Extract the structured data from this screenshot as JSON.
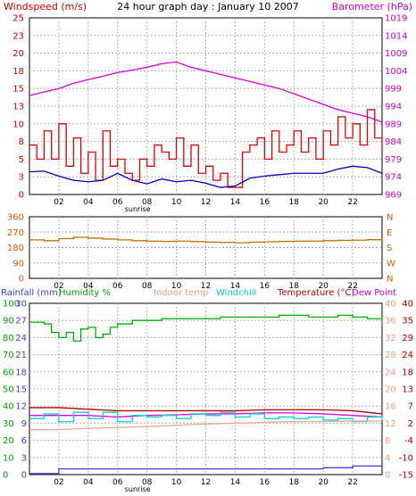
{
  "chart_data": [
    {
      "type": "line",
      "title": "24 hour graph day : January 10 2007",
      "left_axis_label": "Windspeed (m/s)",
      "right_axis_label": "Barometer (hPa)",
      "x_ticks": [
        "02",
        "04",
        "06",
        "08",
        "10",
        "12",
        "14",
        "16",
        "18",
        "20",
        "22"
      ],
      "x_note": "sunrise",
      "y_left_ticks": [
        "0",
        "3",
        "5",
        "8",
        "10",
        "13",
        "15",
        "18",
        "20",
        "23",
        "25"
      ],
      "y_right_ticks": [
        "969",
        "974",
        "979",
        "984",
        "989",
        "994",
        "999",
        "1004",
        "1009",
        "1014",
        "1019"
      ],
      "ylim_left": [
        0,
        25
      ],
      "ylim_right": [
        969,
        1019
      ],
      "grid": true,
      "series": [
        {
          "name": "Barometer (hPa)",
          "axis": "right",
          "color": "#e000e0",
          "x": [
            0,
            1,
            2,
            3,
            4,
            5,
            6,
            7,
            8,
            9,
            10,
            11,
            12,
            13,
            14,
            15,
            16,
            17,
            18,
            19,
            20,
            21,
            22,
            23,
            24
          ],
          "values": [
            997,
            998,
            999,
            1000.5,
            1001.5,
            1002.5,
            1003.5,
            1004.2,
            1005,
            1006,
            1006.5,
            1005,
            1004,
            1003,
            1002,
            1001,
            1000,
            999,
            997.5,
            996,
            994.5,
            993,
            992,
            991,
            989.5
          ]
        },
        {
          "name": "Windspeed (m/s)",
          "axis": "left",
          "color": "#e00000",
          "x": [
            0,
            0.5,
            1,
            1.5,
            2,
            2.5,
            3,
            3.5,
            4,
            4.5,
            5,
            5.5,
            6,
            6.5,
            7,
            7.5,
            8,
            8.5,
            9,
            9.5,
            10,
            10.5,
            11,
            11.5,
            12,
            12.5,
            13,
            13.5,
            14,
            14.5,
            15,
            15.5,
            16,
            16.5,
            17,
            17.5,
            18,
            18.5,
            19,
            19.5,
            20,
            20.5,
            21,
            21.5,
            22,
            22.5,
            23,
            23.5,
            24
          ],
          "values": [
            7,
            5,
            9,
            5,
            10,
            4,
            8,
            3,
            6,
            2,
            9,
            4,
            5,
            3,
            2,
            5,
            4,
            7,
            6,
            5,
            8,
            4,
            7,
            3,
            4,
            2,
            3,
            1,
            1,
            6,
            7,
            8,
            5,
            9,
            6,
            7,
            9,
            6,
            8,
            5,
            9,
            7,
            11,
            8,
            10,
            7,
            12,
            8,
            6
          ]
        },
        {
          "name": "Average windspeed (m/s)",
          "axis": "left",
          "color": "#0000c0",
          "x": [
            0,
            1,
            2,
            3,
            4,
            5,
            6,
            7,
            8,
            9,
            10,
            11,
            12,
            13,
            14,
            15,
            16,
            17,
            18,
            19,
            20,
            21,
            22,
            23,
            24
          ],
          "values": [
            3.2,
            3.3,
            2.6,
            2.0,
            1.8,
            2.0,
            3.0,
            2.0,
            1.5,
            2.2,
            1.8,
            2.0,
            1.6,
            1.0,
            1.2,
            2.3,
            2.6,
            2.8,
            3.0,
            3.0,
            3.0,
            3.6,
            4.0,
            3.8,
            3.0
          ]
        }
      ]
    },
    {
      "type": "line",
      "y_left_ticks": [
        "0",
        "90",
        "180",
        "270",
        "360"
      ],
      "y_right_ticks": [
        "N",
        "W",
        "S",
        "E",
        "N"
      ],
      "x_ticks": [
        "02",
        "04",
        "06",
        "08",
        "10",
        "12",
        "14",
        "16",
        "18",
        "20",
        "22"
      ],
      "ylim": [
        0,
        360
      ],
      "grid": true,
      "series": [
        {
          "name": "Wind direction (degrees)",
          "color": "#c07000",
          "x": [
            0,
            1,
            2,
            3,
            4,
            5,
            6,
            7,
            8,
            9,
            10,
            11,
            12,
            13,
            14,
            15,
            16,
            17,
            18,
            19,
            20,
            21,
            22,
            23,
            24
          ],
          "values": [
            225,
            220,
            232,
            240,
            235,
            230,
            225,
            220,
            218,
            216,
            218,
            215,
            212,
            210,
            208,
            212,
            214,
            216,
            217,
            218,
            220,
            222,
            223,
            226,
            230
          ]
        }
      ]
    },
    {
      "type": "line",
      "labels": {
        "rainfall": "Rainfall (mm)",
        "humidity": "Humidity %",
        "indoor": "Indoor temp",
        "windchill": "Windchill",
        "temperature": "Temperature (°C)",
        "dewpoint": "Dew Point"
      },
      "x_ticks": [
        "02",
        "04",
        "06",
        "08",
        "10",
        "12",
        "14",
        "16",
        "18",
        "20",
        "22"
      ],
      "x_note": "sunrise",
      "rain_ticks": [
        "0",
        "3",
        "6",
        "9",
        "12",
        "15",
        "18",
        "21",
        "24",
        "27",
        "30"
      ],
      "humidity_ticks": [
        "0",
        "10",
        "20",
        "30",
        "40",
        "50",
        "60",
        "70",
        "80",
        "90",
        "100"
      ],
      "indoor_ticks": [
        "0",
        "4",
        "8",
        "12",
        "16",
        "20",
        "24",
        "28",
        "32",
        "36",
        "40"
      ],
      "temperature_ticks": [
        "-15",
        "-10",
        "-4",
        "2",
        "7",
        "13",
        "18",
        "24",
        "29",
        "35",
        "40"
      ],
      "ylim_humidity": [
        0,
        100
      ],
      "ylim_temperature": [
        -15,
        40
      ],
      "grid": true,
      "series": [
        {
          "name": "Humidity %",
          "color": "#00b000",
          "x": [
            0,
            1,
            1.5,
            2,
            2.5,
            3,
            3.5,
            4,
            4.5,
            5,
            5.5,
            6,
            7,
            8,
            9,
            10,
            11,
            12,
            13,
            14,
            15,
            16,
            17,
            18,
            19,
            20,
            21,
            22,
            23,
            24
          ],
          "values": [
            89,
            88,
            83,
            80,
            83,
            78,
            85,
            86,
            80,
            82,
            86,
            88,
            90,
            90,
            91,
            91,
            91,
            91,
            92,
            92,
            92,
            92,
            93,
            93,
            92,
            92,
            93,
            92,
            91,
            87
          ]
        },
        {
          "name": "Temperature (°C)",
          "color": "#b00000",
          "x": [
            0,
            2,
            4,
            6,
            8,
            10,
            12,
            14,
            16,
            18,
            20,
            22,
            24
          ],
          "values": [
            6.5,
            6.5,
            6.0,
            5.5,
            5.5,
            5.5,
            5.5,
            5.5,
            5.8,
            5.8,
            5.8,
            5.5,
            4.5
          ]
        },
        {
          "name": "Dew Point",
          "color": "#e000e0",
          "x": [
            0,
            2,
            4,
            6,
            8,
            10,
            12,
            14,
            16,
            18,
            20,
            22,
            24
          ],
          "values": [
            4.0,
            4.0,
            4.0,
            3.5,
            4.0,
            4.2,
            4.5,
            4.5,
            4.8,
            4.8,
            4.5,
            4.0,
            3.5
          ]
        },
        {
          "name": "Windchill",
          "color": "#00d8d8",
          "x": [
            0,
            1,
            2,
            3,
            4,
            5,
            6,
            7,
            8,
            9,
            10,
            11,
            12,
            13,
            14,
            15,
            16,
            17,
            18,
            19,
            20,
            21,
            22,
            23,
            24
          ],
          "values": [
            3.0,
            4.5,
            2.0,
            5.0,
            3.0,
            5.0,
            2.0,
            4.0,
            3.5,
            4.0,
            3.0,
            4.5,
            4.0,
            5.0,
            3.5,
            4.5,
            3.0,
            3.5,
            3.0,
            3.5,
            2.5,
            3.0,
            2.0,
            3.5,
            2.5
          ]
        },
        {
          "name": "Indoor temp",
          "color": "#f0a890",
          "x": [
            0,
            2,
            4,
            6,
            8,
            10,
            12,
            14,
            16,
            18,
            20,
            22,
            24
          ],
          "values": [
            10.5,
            10.5,
            10.8,
            11.0,
            11.2,
            11.5,
            11.8,
            12.0,
            12.2,
            12.4,
            12.4,
            12.5,
            12.5
          ]
        },
        {
          "name": "Rainfall (mm)",
          "color": "#4040e0",
          "x": [
            0,
            0.5,
            1.5,
            2,
            14,
            16,
            18,
            20,
            22,
            24
          ],
          "values": [
            0.2,
            0.2,
            0.2,
            1.0,
            1.0,
            1.0,
            1.0,
            1.2,
            1.5,
            1.5
          ]
        }
      ]
    }
  ]
}
